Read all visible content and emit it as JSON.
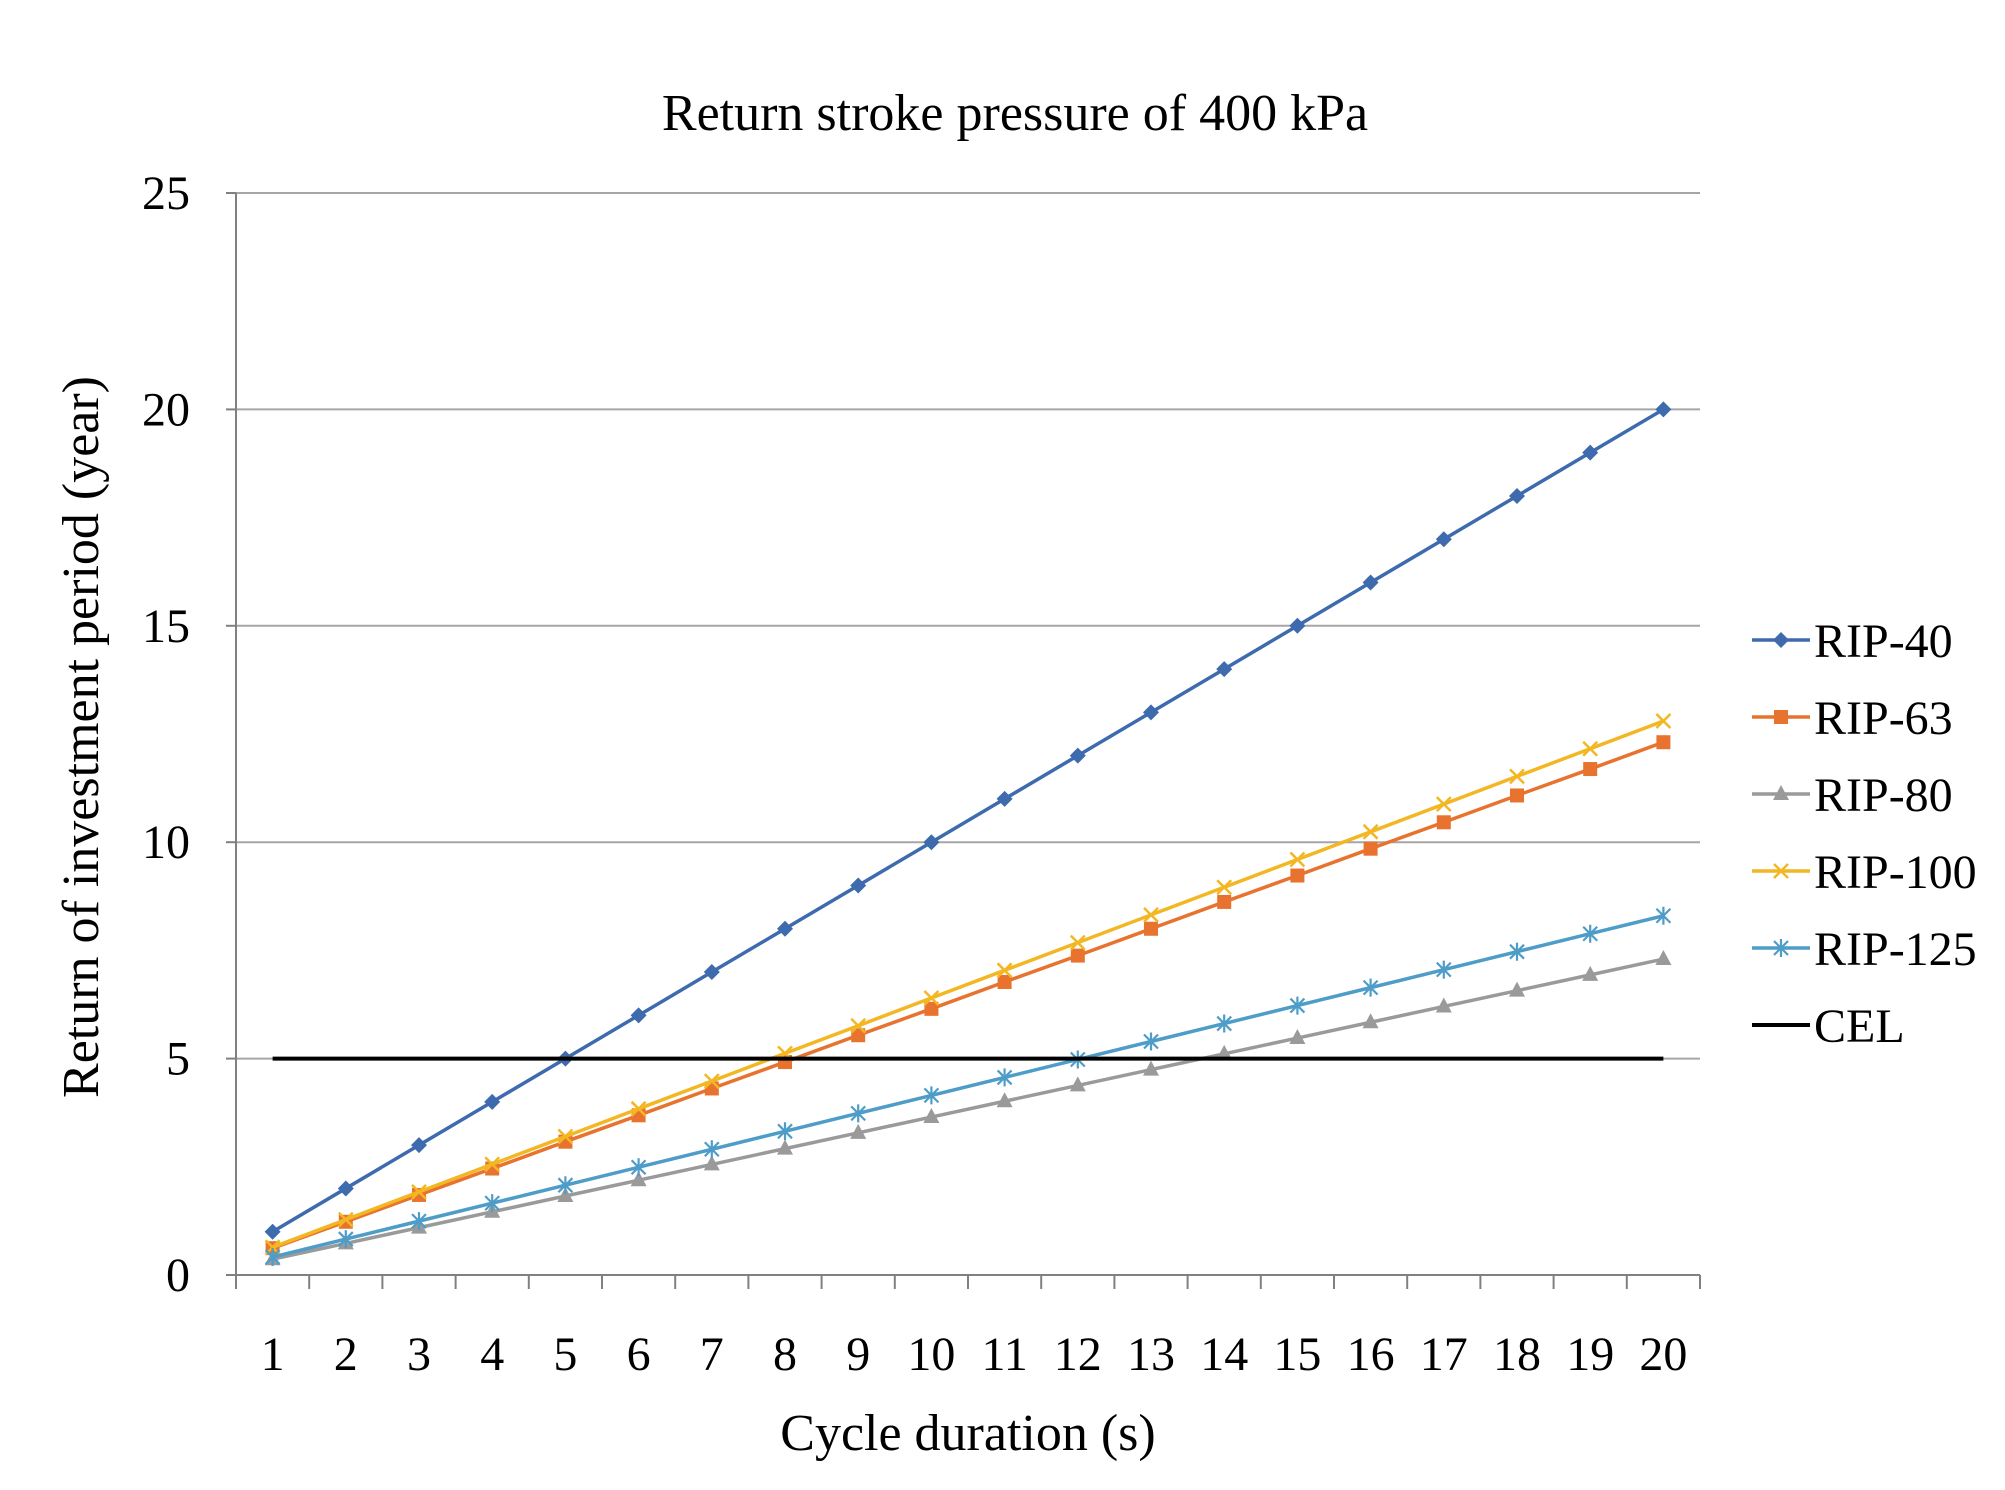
{
  "chart_data": {
    "type": "line",
    "title": "Return stroke pressure of 400 kPa",
    "xlabel": "Cycle duration (s)",
    "ylabel": "Return of investment period (year)",
    "x": [
      1,
      2,
      3,
      4,
      5,
      6,
      7,
      8,
      9,
      10,
      11,
      12,
      13,
      14,
      15,
      16,
      17,
      18,
      19,
      20
    ],
    "ylim": [
      0,
      25
    ],
    "yticks": [
      0,
      5,
      10,
      15,
      20,
      25
    ],
    "grid": true,
    "legend_position": "right",
    "series": [
      {
        "name": "RIP-40",
        "color": "#3E6AAE",
        "marker": "diamond",
        "values": [
          1,
          2,
          3,
          4,
          5,
          6,
          7,
          8,
          9,
          10,
          11,
          12,
          13,
          14,
          15,
          16,
          17,
          18,
          19,
          20
        ]
      },
      {
        "name": "RIP-63",
        "color": "#E8732E",
        "marker": "square",
        "values": [
          0.62,
          1.23,
          1.85,
          2.46,
          3.08,
          3.69,
          4.31,
          4.92,
          5.54,
          6.15,
          6.77,
          7.38,
          8.0,
          8.62,
          9.23,
          9.85,
          10.46,
          11.08,
          11.69,
          12.31
        ]
      },
      {
        "name": "RIP-80",
        "color": "#9A9A9A",
        "marker": "triangle",
        "values": [
          0.365,
          0.73,
          1.095,
          1.46,
          1.825,
          2.19,
          2.555,
          2.92,
          3.285,
          3.65,
          4.015,
          4.38,
          4.745,
          5.11,
          5.475,
          5.84,
          6.205,
          6.57,
          6.935,
          7.3
        ]
      },
      {
        "name": "RIP-100",
        "color": "#F2B722",
        "marker": "x",
        "values": [
          0.64,
          1.28,
          1.92,
          2.56,
          3.2,
          3.84,
          4.48,
          5.12,
          5.76,
          6.4,
          7.04,
          7.68,
          8.32,
          8.96,
          9.6,
          10.24,
          10.88,
          11.52,
          12.16,
          12.8
        ]
      },
      {
        "name": "RIP-125",
        "color": "#4E9CC8",
        "marker": "star",
        "values": [
          0.415,
          0.83,
          1.245,
          1.66,
          2.075,
          2.49,
          2.905,
          3.32,
          3.735,
          4.15,
          4.565,
          4.98,
          5.395,
          5.81,
          6.225,
          6.64,
          7.055,
          7.47,
          7.885,
          8.3
        ]
      },
      {
        "name": "CEL",
        "color": "#000000",
        "marker": "none",
        "values": [
          5,
          5,
          5,
          5,
          5,
          5,
          5,
          5,
          5,
          5,
          5,
          5,
          5,
          5,
          5,
          5,
          5,
          5,
          5,
          5
        ]
      }
    ]
  }
}
